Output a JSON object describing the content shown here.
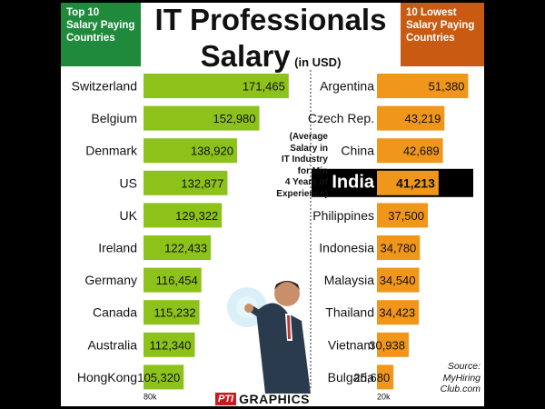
{
  "header": {
    "left_tag": [
      "Top 10",
      "Salary Paying",
      "Countries"
    ],
    "title_line1": "IT Professionals",
    "title_line2": "Salary",
    "title_unit": "(in USD)",
    "right_tag": [
      "10 Lowest",
      "Salary Paying",
      "Countries"
    ]
  },
  "note": [
    "(Average",
    "Salary in",
    "IT Industry",
    "for Min",
    "4 Years of",
    "Experience)"
  ],
  "source": [
    "Source:",
    "MyHiring",
    "Club.com"
  ],
  "credit": {
    "agency": "PTI",
    "text": "GRAPHICS"
  },
  "colors": {
    "left_bar": "#8cc21a",
    "right_bar": "#f0961a",
    "highlight_band": "#000000"
  },
  "chart_data": [
    {
      "type": "bar",
      "orientation": "horizontal",
      "title": "Top 10 Salary Paying Countries",
      "categories": [
        "Switzerland",
        "Belgium",
        "Denmark",
        "US",
        "UK",
        "Ireland",
        "Germany",
        "Canada",
        "Australia",
        "HongKong"
      ],
      "values": [
        171465,
        152980,
        138920,
        132877,
        129322,
        122433,
        116454,
        115232,
        112340,
        105320
      ],
      "value_labels": [
        "171,465",
        "152,980",
        "138,920",
        "132,877",
        "129,322",
        "122,433",
        "116,454",
        "115,232",
        "112,340",
        "105,320"
      ],
      "axis_min_label": "80k",
      "xlim": [
        80000,
        175000
      ]
    },
    {
      "type": "bar",
      "orientation": "horizontal",
      "title": "10 Lowest Salary Paying Countries",
      "categories": [
        "Argentina",
        "Czech Rep.",
        "China",
        "India",
        "Philippines",
        "Indonesia",
        "Malaysia",
        "Thailand",
        "Vietnam",
        "Bulgaria"
      ],
      "values": [
        51380,
        43219,
        42689,
        41213,
        37500,
        34780,
        34540,
        34423,
        30938,
        25680
      ],
      "value_labels": [
        "51,380",
        "43,219",
        "42,689",
        "41,213",
        "37,500",
        "34,780",
        "34,540",
        "34,423",
        "30,938",
        "25,680"
      ],
      "highlight": "India",
      "axis_min_label": "20k",
      "xlim": [
        20000,
        52500
      ]
    }
  ]
}
